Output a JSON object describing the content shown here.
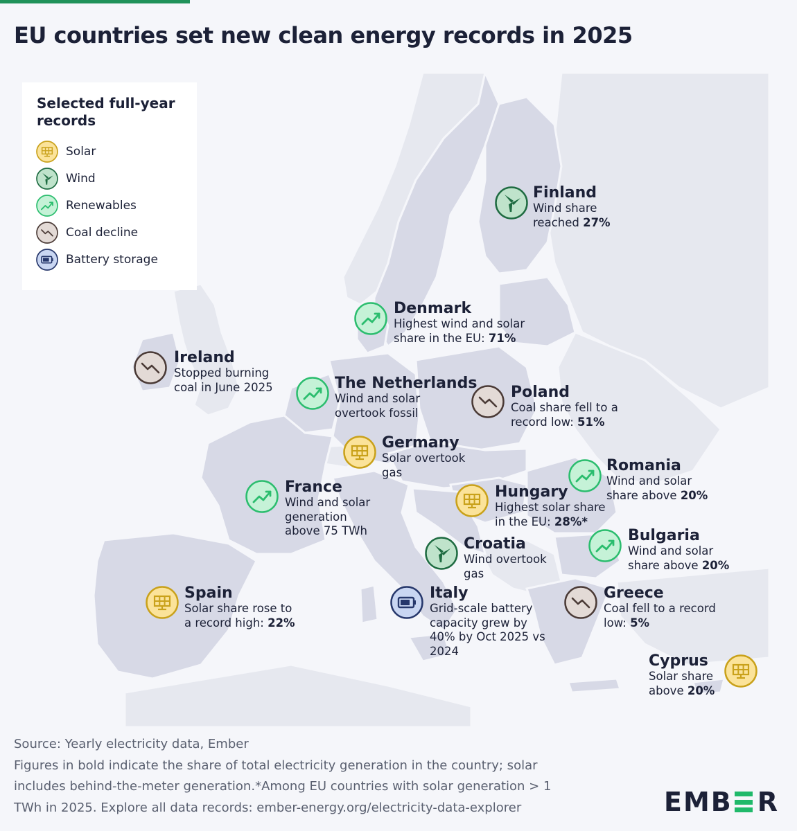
{
  "title": "EU countries set new clean energy records in 2025",
  "colors": {
    "background": "#f5f6fa",
    "land_eu": "#d7d9e6",
    "land_other": "#e6e8ef",
    "border": "#f5f6fa",
    "accent": "#20b96a",
    "text": "#1c2137"
  },
  "legend": {
    "title_line1": "Selected full-year",
    "title_line2": "records",
    "items": [
      {
        "label": "Solar",
        "icon": "solar-icon"
      },
      {
        "label": "Wind",
        "icon": "wind-icon"
      },
      {
        "label": "Renewables",
        "icon": "renewables-icon"
      },
      {
        "label": "Coal decline",
        "icon": "coal-decline-icon"
      },
      {
        "label": "Battery storage",
        "icon": "battery-icon"
      }
    ]
  },
  "callouts": {
    "finland": {
      "name": "Finland",
      "line1": "Wind share",
      "line2_pre": "reached ",
      "line2_bold": "27%",
      "icon": "wind-icon"
    },
    "denmark": {
      "name": "Denmark",
      "line1": "Highest wind and solar",
      "line2_pre": "share in the EU: ",
      "line2_bold": "71%",
      "icon": "renewables-icon"
    },
    "ireland": {
      "name": "Ireland",
      "line1": "Stopped burning",
      "line2": "coal in June 2025",
      "icon": "coal-decline-icon"
    },
    "netherlands": {
      "name": "The Netherlands",
      "line1": "Wind and solar",
      "line2": "overtook fossil",
      "icon": "renewables-icon"
    },
    "poland": {
      "name": "Poland",
      "line1": "Coal share fell to a",
      "line2_pre": "record low: ",
      "line2_bold": "51%",
      "icon": "coal-decline-icon"
    },
    "germany": {
      "name": "Germany",
      "line1": "Solar overtook",
      "line2": "gas",
      "icon": "solar-icon"
    },
    "romania": {
      "name": "Romania",
      "line1": "Wind and solar",
      "line2_pre": "share above ",
      "line2_bold": "20%",
      "icon": "renewables-icon"
    },
    "france": {
      "name": "France",
      "line1": "Wind and solar",
      "line2": "generation",
      "line3": "above 75 TWh",
      "icon": "renewables-icon"
    },
    "hungary": {
      "name": "Hungary",
      "line1": "Highest solar share",
      "line2_pre": "in the EU: ",
      "line2_bold": "28%*",
      "icon": "solar-icon"
    },
    "croatia": {
      "name": "Croatia",
      "line1": "Wind overtook",
      "line2": "gas",
      "icon": "wind-icon"
    },
    "bulgaria": {
      "name": "Bulgaria",
      "line1": "Wind and solar",
      "line2_pre": "share above ",
      "line2_bold": "20%",
      "icon": "renewables-icon"
    },
    "spain": {
      "name": "Spain",
      "line1": "Solar share rose to",
      "line2_pre": "a record high: ",
      "line2_bold": "22%",
      "icon": "solar-icon"
    },
    "italy": {
      "name": "Italy",
      "line1": "Grid-scale battery",
      "line2": "capacity grew by",
      "line3": "40% by Oct 2025 vs",
      "line4": "2024",
      "icon": "battery-icon"
    },
    "greece": {
      "name": "Greece",
      "line1": "Coal fell to a record",
      "line2_pre": "low: ",
      "line2_bold": "5%",
      "icon": "coal-decline-icon"
    },
    "cyprus": {
      "name": "Cyprus",
      "line1": "Solar share",
      "line2_pre": "above ",
      "line2_bold": "20%",
      "icon": "solar-icon"
    }
  },
  "footer": {
    "source": "Source: Yearly electricity data, Ember",
    "note1": "Figures in bold indicate the share of total electricity generation in the country; solar",
    "note2": "includes behind-the-meter generation.*Among EU countries with solar generation > 1",
    "note3": "TWh in 2025. Explore all data records: ember-energy.org/electricity-data-explorer"
  },
  "logo": {
    "left": "EMB",
    "right": "R"
  }
}
